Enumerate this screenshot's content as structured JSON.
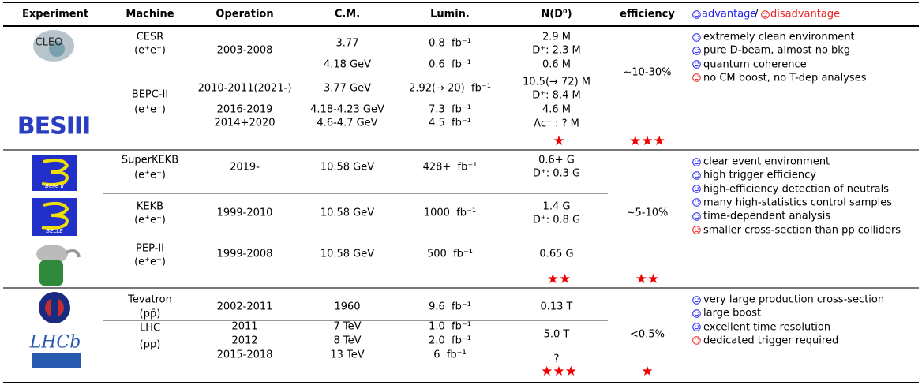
{
  "header": {
    "experiment": "Experiment",
    "machine": "Machine",
    "operation": "Operation",
    "cm": "C.M.",
    "lumin": "Lumin.",
    "n": "N(D⁰)",
    "efficiency": "efficiency",
    "advantage": "advantage",
    "slash": "/",
    "disadvantage": "disadvantage"
  },
  "groups": [
    {
      "logos": [
        "CLEO",
        "BESIII"
      ],
      "machines": [
        {
          "name": "CESR",
          "beam": "(e⁺e⁻)",
          "operation": [
            "2003-2008"
          ],
          "cm": [
            "3.77",
            "4.18 GeV"
          ],
          "lumin": [
            "0.8  fb⁻¹",
            "0.6  fb⁻¹"
          ],
          "n": [
            "2.9 M",
            "D⁺: 2.3 M",
            "0.6 M"
          ]
        },
        {
          "name": "BEPC-II",
          "beam": "(e⁺e⁻)",
          "operation": [
            "2010-2011(2021-)",
            "2016-2019",
            "2014+2020"
          ],
          "cm": [
            "3.77 GeV",
            "4.18-4.23 GeV",
            "4.6-4.7 GeV"
          ],
          "lumin": [
            "2.92(→ 20)  fb⁻¹",
            "7.3  fb⁻¹",
            "4.5  fb⁻¹"
          ],
          "n": [
            "10.5(→ 72) M",
            "D⁺: 8.4 M",
            "4.6 M",
            "Λc⁺ : ? M"
          ]
        }
      ],
      "efficiency": "∼10-30%",
      "stars_n": "★",
      "stars_efficiency": "★★★",
      "advantages": [
        "extremely clean environment",
        "pure D-beam, almost no bkg",
        "quantum coherence"
      ],
      "disadvantages": [
        "no CM boost, no T-dep analyses"
      ]
    },
    {
      "logos": [
        "Belle II",
        "BELLE"
      ],
      "machines": [
        {
          "name": "SuperKEKB",
          "beam": "(e⁺e⁻)",
          "operation": [
            "2019-"
          ],
          "cm": [
            "10.58 GeV"
          ],
          "lumin": [
            "428+  fb⁻¹"
          ],
          "n": [
            "0.6+ G",
            "D⁺: 0.3 G"
          ]
        },
        {
          "name": "KEKB",
          "beam": "(e⁺e⁻)",
          "operation": [
            "1999-2010"
          ],
          "cm": [
            "10.58 GeV"
          ],
          "lumin": [
            "1000  fb⁻¹"
          ],
          "n": [
            "1.4 G",
            "D⁺: 0.8 G"
          ]
        },
        {
          "name": "PEP-II",
          "beam": "(e⁺e⁻)",
          "operation": [
            "1999-2008"
          ],
          "cm": [
            "10.58 GeV"
          ],
          "lumin": [
            "500  fb⁻¹"
          ],
          "n": [
            "0.65 G"
          ]
        }
      ],
      "efficiency": "∼5-10%",
      "stars_n": "★★",
      "stars_efficiency": "★★",
      "advantages": [
        "clear event environment",
        "high trigger efficiency",
        "high-efficiency detection of neutrals",
        "many high-statistics control samples",
        "time-dependent analysis"
      ],
      "disadvantages": [
        "smaller cross-section than pp colliders"
      ]
    },
    {
      "logos": [
        "LHCb"
      ],
      "machines": [
        {
          "name": "Tevatron",
          "beam": "(pp̄)",
          "operation": [
            "2002-2011"
          ],
          "cm": [
            "1960"
          ],
          "lumin": [
            "9.6  fb⁻¹"
          ],
          "n": [
            "0.13 T"
          ]
        },
        {
          "name": "LHC",
          "beam": "(pp)",
          "operation": [
            "2011",
            "2012",
            "2015-2018"
          ],
          "cm": [
            "7 TeV",
            "8 TeV",
            "13 TeV"
          ],
          "lumin": [
            "1.0  fb⁻¹",
            "2.0  fb⁻¹",
            "6  fb⁻¹"
          ],
          "n": [
            "5.0 T",
            "?"
          ]
        }
      ],
      "efficiency": "<0.5%",
      "stars_n": "★★★",
      "stars_efficiency": "★",
      "advantages": [
        "very large production cross-section",
        "large boost",
        "excellent time resolution"
      ],
      "disadvantages": [
        "dedicated trigger required"
      ]
    }
  ]
}
